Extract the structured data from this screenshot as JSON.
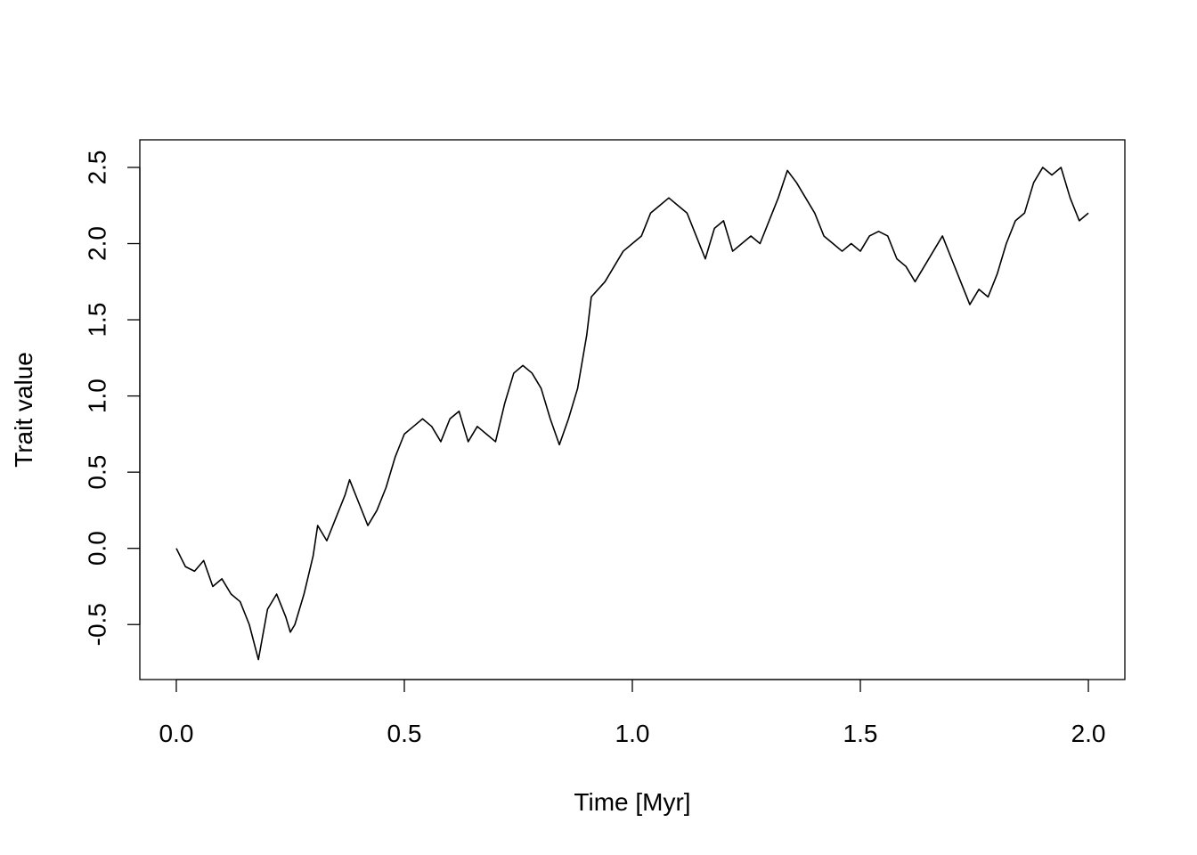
{
  "chart_data": {
    "type": "line",
    "x_label": "Time [Myr]",
    "y_label": "Trait value",
    "x": [
      0,
      0.02,
      0.04,
      0.06,
      0.08,
      0.1,
      0.12,
      0.14,
      0.16,
      0.18,
      0.2,
      0.22,
      0.24,
      0.25,
      0.26,
      0.28,
      0.3,
      0.31,
      0.33,
      0.35,
      0.37,
      0.38,
      0.4,
      0.42,
      0.44,
      0.46,
      0.48,
      0.5,
      0.52,
      0.54,
      0.56,
      0.58,
      0.6,
      0.62,
      0.64,
      0.66,
      0.68,
      0.7,
      0.72,
      0.74,
      0.76,
      0.78,
      0.8,
      0.82,
      0.84,
      0.86,
      0.88,
      0.9,
      0.91,
      0.94,
      0.96,
      0.98,
      1.0,
      1.02,
      1.04,
      1.06,
      1.08,
      1.1,
      1.12,
      1.14,
      1.16,
      1.18,
      1.2,
      1.22,
      1.24,
      1.26,
      1.28,
      1.3,
      1.32,
      1.34,
      1.36,
      1.38,
      1.4,
      1.42,
      1.44,
      1.46,
      1.48,
      1.5,
      1.52,
      1.54,
      1.56,
      1.58,
      1.6,
      1.62,
      1.64,
      1.66,
      1.68,
      1.7,
      1.72,
      1.74,
      1.76,
      1.78,
      1.8,
      1.82,
      1.84,
      1.86,
      1.88,
      1.9,
      1.92,
      1.94,
      1.96,
      1.98,
      2.0
    ],
    "series": [
      {
        "color": "#000000",
        "values": [
          0,
          -0.12,
          -0.15,
          -0.08,
          -0.25,
          -0.2,
          -0.3,
          -0.35,
          -0.5,
          -0.73,
          -0.4,
          -0.3,
          -0.45,
          -0.55,
          -0.5,
          -0.3,
          -0.05,
          0.15,
          0.05,
          0.2,
          0.35,
          0.45,
          0.3,
          0.15,
          0.25,
          0.4,
          0.6,
          0.75,
          0.8,
          0.85,
          0.8,
          0.7,
          0.85,
          0.9,
          0.7,
          0.8,
          0.75,
          0.7,
          0.95,
          1.15,
          1.2,
          1.15,
          1.05,
          0.85,
          0.68,
          0.85,
          1.05,
          1.4,
          1.65,
          1.75,
          1.85,
          1.95,
          2.0,
          2.05,
          2.2,
          2.25,
          2.3,
          2.25,
          2.2,
          2.05,
          1.9,
          2.1,
          2.15,
          1.95,
          2.0,
          2.05,
          2.0,
          2.15,
          2.3,
          2.48,
          2.4,
          2.3,
          2.2,
          2.05,
          2.0,
          1.95,
          2.0,
          1.95,
          2.05,
          2.08,
          2.05,
          1.9,
          1.85,
          1.75,
          1.85,
          1.95,
          2.05,
          1.9,
          1.75,
          1.6,
          1.7,
          1.65,
          1.8,
          2.0,
          2.15,
          2.2,
          2.4,
          2.5,
          2.45,
          2.5,
          2.3,
          2.15,
          2.2
        ]
      }
    ],
    "xlim": [
      -0.08,
      2.08
    ],
    "ylim": [
      -0.861,
      2.681
    ],
    "xticks": [
      {
        "value": 0,
        "label": "0.0"
      },
      0.5,
      {
        "value": 1,
        "label": "1.0"
      },
      1.5,
      {
        "value": 2,
        "label": "2.0"
      }
    ],
    "yticks": [
      -0.5,
      {
        "value": 0,
        "label": "0.0"
      },
      0.5,
      {
        "value": 1,
        "label": "1.0"
      },
      1.5,
      {
        "value": 2,
        "label": "2.0"
      },
      2.5
    ],
    "grid": false
  }
}
